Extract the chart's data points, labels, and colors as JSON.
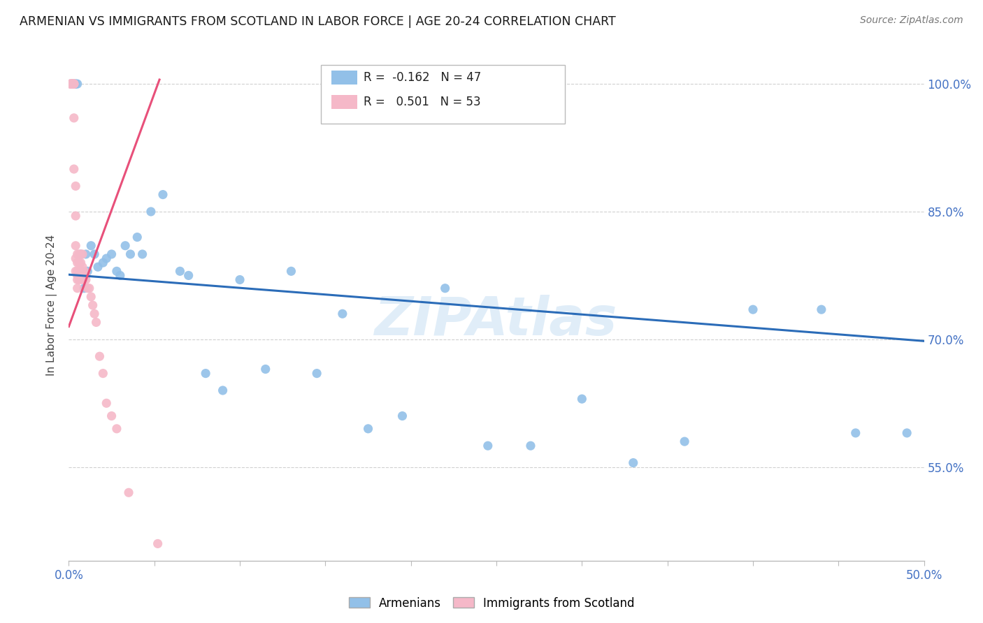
{
  "title": "ARMENIAN VS IMMIGRANTS FROM SCOTLAND IN LABOR FORCE | AGE 20-24 CORRELATION CHART",
  "source": "Source: ZipAtlas.com",
  "ylabel": "In Labor Force | Age 20-24",
  "right_yticks": [
    "100.0%",
    "85.0%",
    "70.0%",
    "55.0%"
  ],
  "right_ytick_vals": [
    1.0,
    0.85,
    0.7,
    0.55
  ],
  "legend_blue": {
    "R": "-0.162",
    "N": "47",
    "label": "Armenians"
  },
  "legend_pink": {
    "R": "0.501",
    "N": "53",
    "label": "Immigrants from Scotland"
  },
  "blue_color": "#92c0e8",
  "pink_color": "#f5b8c8",
  "blue_line_color": "#2b6cb8",
  "pink_line_color": "#e8507a",
  "watermark": "ZIPAtlas",
  "xmin": 0.0,
  "xmax": 0.5,
  "ymin": 0.44,
  "ymax": 1.04,
  "blue_scatter_x": [
    0.002,
    0.003,
    0.004,
    0.004,
    0.005,
    0.006,
    0.006,
    0.007,
    0.008,
    0.009,
    0.01,
    0.011,
    0.013,
    0.015,
    0.017,
    0.02,
    0.022,
    0.025,
    0.028,
    0.03,
    0.033,
    0.036,
    0.04,
    0.043,
    0.048,
    0.055,
    0.065,
    0.07,
    0.08,
    0.09,
    0.1,
    0.115,
    0.13,
    0.145,
    0.16,
    0.175,
    0.195,
    0.22,
    0.245,
    0.27,
    0.3,
    0.33,
    0.36,
    0.4,
    0.44,
    0.46,
    0.49
  ],
  "blue_scatter_y": [
    1.0,
    1.0,
    1.0,
    1.0,
    1.0,
    0.775,
    0.775,
    0.8,
    0.775,
    0.76,
    0.8,
    0.78,
    0.81,
    0.8,
    0.785,
    0.79,
    0.795,
    0.8,
    0.78,
    0.775,
    0.81,
    0.8,
    0.82,
    0.8,
    0.85,
    0.87,
    0.78,
    0.775,
    0.66,
    0.64,
    0.77,
    0.665,
    0.78,
    0.66,
    0.73,
    0.595,
    0.61,
    0.76,
    0.575,
    0.575,
    0.63,
    0.555,
    0.58,
    0.735,
    0.735,
    0.59,
    0.59
  ],
  "pink_scatter_x": [
    0.001,
    0.001,
    0.001,
    0.001,
    0.002,
    0.002,
    0.002,
    0.002,
    0.002,
    0.003,
    0.003,
    0.003,
    0.003,
    0.003,
    0.003,
    0.004,
    0.004,
    0.004,
    0.004,
    0.004,
    0.005,
    0.005,
    0.005,
    0.005,
    0.005,
    0.005,
    0.006,
    0.006,
    0.006,
    0.006,
    0.007,
    0.007,
    0.007,
    0.008,
    0.008,
    0.008,
    0.009,
    0.009,
    0.01,
    0.01,
    0.011,
    0.012,
    0.013,
    0.014,
    0.015,
    0.016,
    0.018,
    0.02,
    0.022,
    0.025,
    0.028,
    0.035,
    0.052
  ],
  "pink_scatter_y": [
    1.0,
    1.0,
    1.0,
    1.0,
    1.0,
    1.0,
    1.0,
    1.0,
    1.0,
    1.0,
    1.0,
    1.0,
    1.0,
    0.96,
    0.9,
    0.88,
    0.845,
    0.81,
    0.795,
    0.78,
    0.8,
    0.79,
    0.78,
    0.775,
    0.77,
    0.76,
    0.8,
    0.79,
    0.78,
    0.77,
    0.8,
    0.79,
    0.78,
    0.8,
    0.785,
    0.77,
    0.78,
    0.77,
    0.775,
    0.77,
    0.76,
    0.76,
    0.75,
    0.74,
    0.73,
    0.72,
    0.68,
    0.66,
    0.625,
    0.61,
    0.595,
    0.52,
    0.46
  ],
  "blue_trendline_x": [
    0.0,
    0.5
  ],
  "blue_trendline_y": [
    0.776,
    0.698
  ],
  "pink_trendline_x": [
    0.0,
    0.053
  ],
  "pink_trendline_y": [
    0.715,
    1.005
  ]
}
